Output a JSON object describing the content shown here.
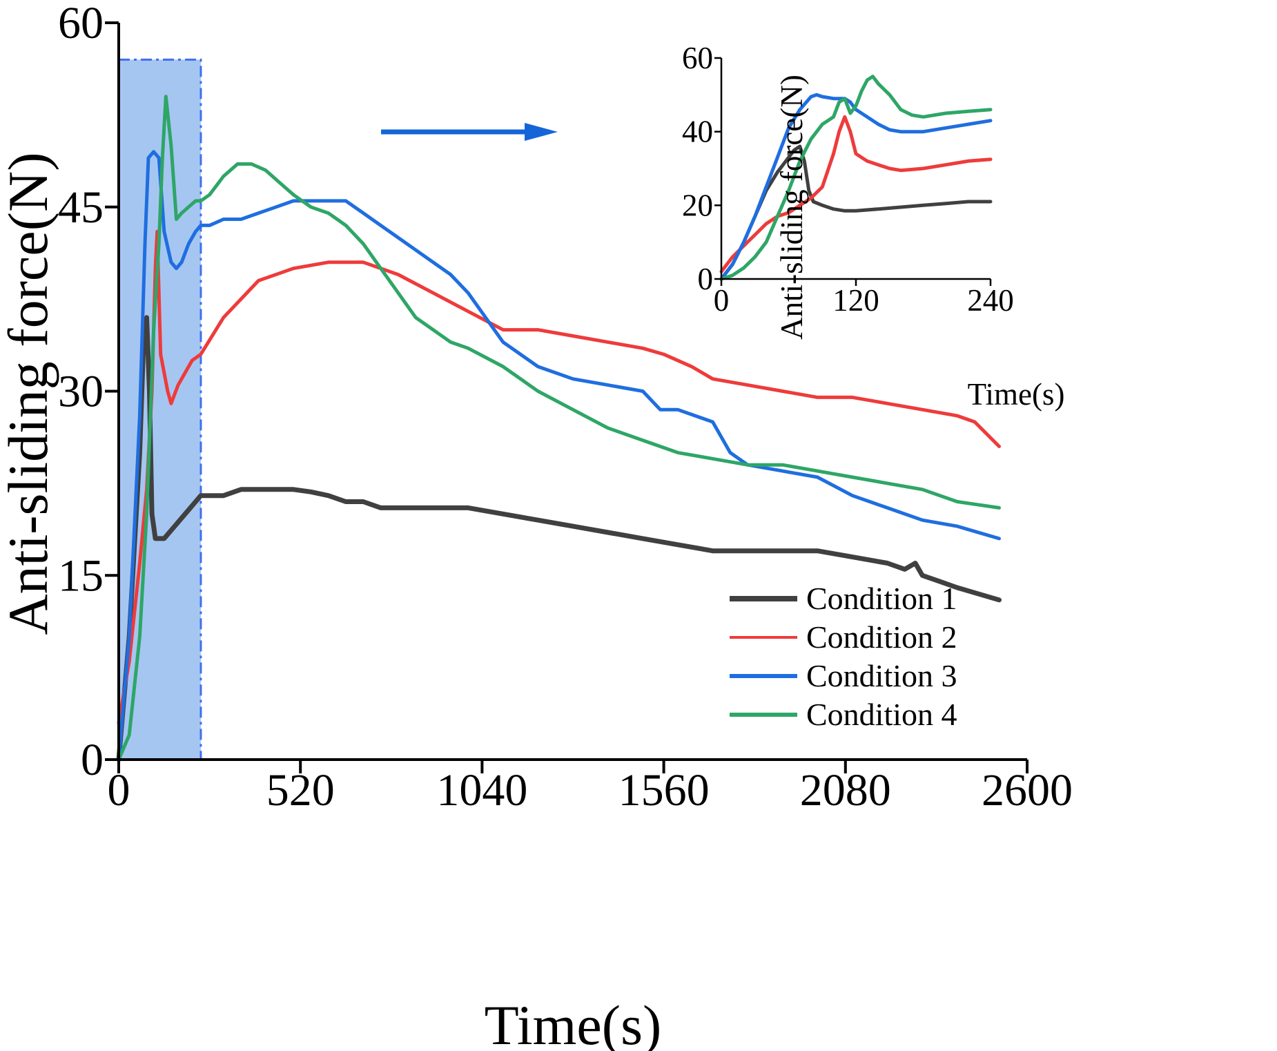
{
  "chart_data": [
    {
      "type": "line",
      "xlabel": "Time(s)",
      "ylabel": "Anti-sliding force(N)",
      "xlim": [
        0,
        2600
      ],
      "ylim": [
        0,
        60
      ],
      "xticks": [
        "0",
        "520",
        "1040",
        "1560",
        "2080",
        "2600"
      ],
      "yticks": [
        "0",
        "15",
        "30",
        "45",
        "60"
      ],
      "grid": false,
      "legend_position": "bottom-right",
      "highlight_region": {
        "x": [
          0,
          235
        ],
        "y": [
          0,
          57
        ],
        "color": "#a6c6f2"
      },
      "arrow_annotation": {
        "direction": "right",
        "color": "#1565d8"
      },
      "series": [
        {
          "name": "Condition 1",
          "color": "#404040",
          "x": [
            0,
            30,
            60,
            70,
            80,
            88,
            95,
            105,
            130,
            160,
            190,
            220,
            235,
            260,
            300,
            350,
            400,
            450,
            500,
            550,
            600,
            650,
            700,
            750,
            800,
            900,
            1000,
            1100,
            1200,
            1300,
            1400,
            1500,
            1600,
            1700,
            1800,
            1900,
            2000,
            2100,
            2200,
            2250,
            2280,
            2300,
            2350,
            2400,
            2520
          ],
          "values": [
            0,
            10,
            25,
            33,
            36,
            30,
            20,
            18,
            18,
            19,
            20,
            21,
            21.5,
            21.5,
            21.5,
            22,
            22,
            22,
            22,
            21.8,
            21.5,
            21,
            21,
            20.5,
            20.5,
            20.5,
            20.5,
            20,
            19.5,
            19,
            18.5,
            18,
            17.5,
            17,
            17,
            17,
            17,
            16.5,
            16,
            15.5,
            16,
            15,
            14.5,
            14,
            13
          ]
        },
        {
          "name": "Condition 2",
          "color": "#ee3b3b",
          "x": [
            0,
            30,
            60,
            80,
            95,
            105,
            110,
            120,
            140,
            150,
            170,
            190,
            210,
            235,
            300,
            400,
            500,
            600,
            700,
            750,
            800,
            900,
            1000,
            1100,
            1200,
            1300,
            1400,
            1500,
            1560,
            1640,
            1700,
            1800,
            1900,
            2000,
            2100,
            2200,
            2300,
            2400,
            2450,
            2520
          ],
          "values": [
            3,
            8,
            16,
            22,
            30,
            40,
            43,
            33,
            30,
            29,
            30.5,
            31.5,
            32.5,
            33,
            36,
            39,
            40,
            40.5,
            40.5,
            40,
            39.5,
            38,
            36.5,
            35,
            35,
            34.5,
            34,
            33.5,
            33,
            32,
            31,
            30.5,
            30,
            29.5,
            29.5,
            29,
            28.5,
            28,
            27.5,
            25.5
          ]
        },
        {
          "name": "Condition 3",
          "color": "#1f6ee0",
          "x": [
            0,
            30,
            60,
            75,
            85,
            100,
            115,
            130,
            150,
            165,
            180,
            200,
            220,
            235,
            260,
            300,
            350,
            400,
            450,
            500,
            550,
            600,
            650,
            700,
            750,
            800,
            850,
            900,
            950,
            1000,
            1050,
            1100,
            1200,
            1300,
            1400,
            1500,
            1550,
            1600,
            1700,
            1750,
            1800,
            1900,
            2000,
            2100,
            2200,
            2300,
            2400,
            2520
          ],
          "values": [
            0,
            10,
            28,
            42,
            49,
            49.5,
            49,
            43,
            40.5,
            40,
            40.5,
            42,
            43,
            43.5,
            43.5,
            44,
            44,
            44.5,
            45,
            45.5,
            45.5,
            45.5,
            45.5,
            44.5,
            43.5,
            42.5,
            41.5,
            40.5,
            39.5,
            38,
            36,
            34,
            32,
            31,
            30.5,
            30,
            28.5,
            28.5,
            27.5,
            25,
            24,
            23.5,
            23,
            21.5,
            20.5,
            19.5,
            19,
            18
          ]
        },
        {
          "name": "Condition 4",
          "color": "#2ea666",
          "x": [
            0,
            30,
            60,
            80,
            100,
            115,
            125,
            135,
            150,
            165,
            180,
            200,
            220,
            235,
            260,
            300,
            340,
            380,
            420,
            460,
            500,
            550,
            600,
            650,
            700,
            750,
            800,
            850,
            900,
            950,
            1000,
            1100,
            1200,
            1300,
            1400,
            1500,
            1600,
            1700,
            1800,
            1900,
            2000,
            2100,
            2200,
            2300,
            2400,
            2520
          ],
          "values": [
            0,
            2,
            10,
            20,
            35,
            42,
            49,
            54,
            50,
            44,
            44.5,
            45,
            45.5,
            45.5,
            46,
            47.5,
            48.5,
            48.5,
            48,
            47,
            46,
            45,
            44.5,
            43.5,
            42,
            40,
            38,
            36,
            35,
            34,
            33.5,
            32,
            30,
            28.5,
            27,
            26,
            25,
            24.5,
            24,
            24,
            23.5,
            23,
            22.5,
            22,
            21,
            20.5
          ]
        }
      ]
    },
    {
      "type": "line",
      "xlabel": "Time(s)",
      "ylabel": "Anti-sliding force(N)",
      "xlim": [
        0,
        240
      ],
      "ylim": [
        0,
        60
      ],
      "xticks": [
        "0",
        "120",
        "240"
      ],
      "yticks": [
        "0",
        "20",
        "40",
        "60"
      ],
      "grid": false,
      "legend_position": "none",
      "series": [
        {
          "name": "Condition 1",
          "color": "#404040",
          "x": [
            0,
            10,
            20,
            30,
            40,
            50,
            60,
            65,
            70,
            74,
            78,
            82,
            90,
            100,
            110,
            120,
            140,
            160,
            180,
            200,
            220,
            240
          ],
          "values": [
            0,
            4,
            10,
            17,
            24,
            29,
            33,
            35,
            36,
            32,
            24,
            21,
            20,
            19,
            18.5,
            18.5,
            19,
            19.5,
            20,
            20.5,
            21,
            21
          ]
        },
        {
          "name": "Condition 2",
          "color": "#ee3b3b",
          "x": [
            0,
            10,
            20,
            30,
            40,
            50,
            60,
            70,
            80,
            90,
            100,
            105,
            110,
            115,
            120,
            130,
            140,
            150,
            160,
            180,
            200,
            220,
            240
          ],
          "values": [
            2,
            6,
            9,
            12,
            15,
            17,
            18,
            20,
            22,
            25,
            34,
            40,
            44,
            40,
            34,
            32,
            31,
            30,
            29.5,
            30,
            31,
            32,
            32.5
          ]
        },
        {
          "name": "Condition 3",
          "color": "#1f6ee0",
          "x": [
            0,
            10,
            20,
            30,
            40,
            50,
            60,
            70,
            80,
            85,
            90,
            100,
            110,
            115,
            120,
            130,
            140,
            150,
            160,
            180,
            200,
            220,
            240
          ],
          "values": [
            0,
            4,
            10,
            17,
            25,
            33,
            41,
            46,
            49.5,
            50,
            49.5,
            49,
            49,
            48,
            46,
            44,
            42,
            40.5,
            40,
            40,
            41,
            42,
            43
          ]
        },
        {
          "name": "Condition 4",
          "color": "#2ea666",
          "x": [
            0,
            10,
            20,
            30,
            40,
            50,
            60,
            70,
            80,
            90,
            100,
            105,
            110,
            115,
            120,
            125,
            130,
            135,
            140,
            150,
            160,
            170,
            180,
            200,
            220,
            240
          ],
          "values": [
            0,
            1,
            3,
            6,
            10,
            17,
            24,
            32,
            38,
            42,
            44,
            48,
            49,
            45,
            47,
            51,
            54,
            55,
            53,
            50,
            46,
            44.5,
            44,
            45,
            45.5,
            46
          ]
        }
      ]
    }
  ]
}
